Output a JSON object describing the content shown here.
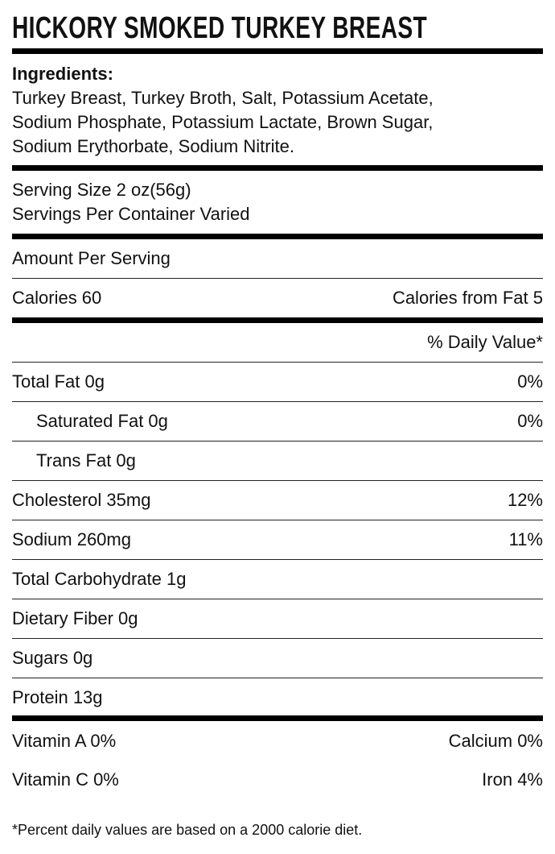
{
  "title": "HICKORY SMOKED TURKEY BREAST",
  "ingredients": {
    "heading": "Ingredients:",
    "lines": [
      "Turkey Breast, Turkey Broth, Salt, Potassium Acetate,",
      "Sodium Phosphate, Potassium Lactate, Brown Sugar,",
      "Sodium Erythorbate, Sodium Nitrite."
    ]
  },
  "serving": {
    "size": "Serving Size 2 oz(56g)",
    "per_container": "Servings Per Container Varied"
  },
  "amount_per_serving": "Amount Per Serving",
  "calories": "Calories 60",
  "calories_from_fat": "Calories from Fat 5",
  "daily_value_header": "% Daily Value*",
  "nutrients": [
    {
      "label": "Total Fat 0g",
      "dv": "0%"
    },
    {
      "label": "Saturated Fat 0g",
      "dv": "0%"
    },
    {
      "label": "Trans Fat 0g",
      "dv": ""
    },
    {
      "label": "Cholesterol 35mg",
      "dv": "12%"
    },
    {
      "label": "Sodium 260mg",
      "dv": "11%"
    },
    {
      "label": "Total Carbohydrate 1g",
      "dv": ""
    },
    {
      "label": "Dietary Fiber 0g",
      "dv": ""
    },
    {
      "label": "Sugars 0g",
      "dv": ""
    },
    {
      "label": "Protein 13g",
      "dv": ""
    }
  ],
  "vitamins": [
    {
      "left": "Vitamin A 0%",
      "right": "Calcium 0%"
    },
    {
      "left": "Vitamin C 0%",
      "right": "Iron 4%"
    }
  ],
  "footnote": "*Percent daily values are based on a 2000 calorie diet."
}
